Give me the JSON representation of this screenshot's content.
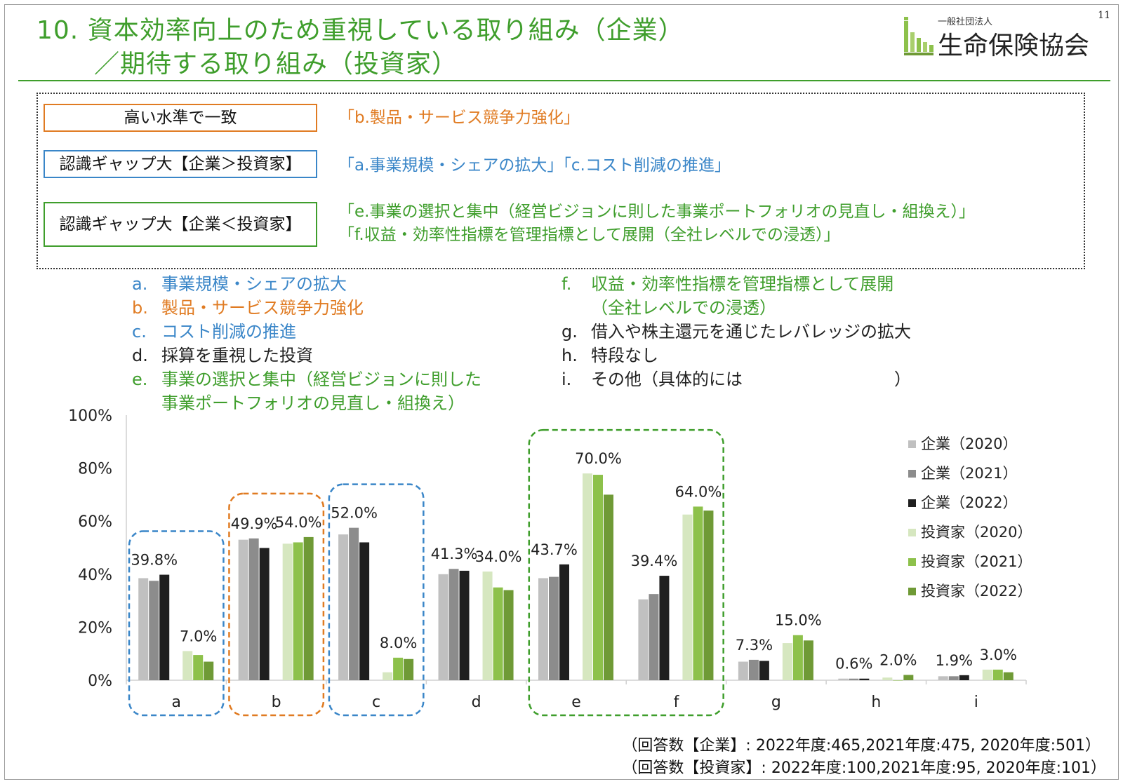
{
  "page_number": "11",
  "title": {
    "line1": "10. 資本効率向上のため重視している取り組み（企業）",
    "line2": "／期待する取り組み（投資家）"
  },
  "logo": {
    "sub": "一般社団法人",
    "main": "生命保険協会"
  },
  "summary": [
    {
      "tag": "高い水準で一致",
      "desc": [
        "「b.製品・サービス競争力強化」"
      ],
      "color": "#e07b22"
    },
    {
      "tag": "認識ギャップ大【企業＞投資家】",
      "desc": [
        "「a.事業規模・シェアの拡大」「c.コスト削減の推進」"
      ],
      "color": "#3a86c8"
    },
    {
      "tag": "認識ギャップ大【企業＜投資家】",
      "desc": [
        "「e.事業の選択と集中（経営ビジョンに則した事業ポートフォリオの見直し・組換え）」",
        "「f.収益・効率性指標を管理指標として展開（全社レベルでの浸透）」"
      ],
      "color": "#3f9e2c"
    }
  ],
  "category_legend": {
    "left": [
      {
        "letter": "a.",
        "text": "事業規模・シェアの拡大",
        "color": "#3a86c8"
      },
      {
        "letter": "b.",
        "text": "製品・サービス競争力強化",
        "color": "#e07b22"
      },
      {
        "letter": "c.",
        "text": "コスト削減の推進",
        "color": "#3a86c8"
      },
      {
        "letter": "d.",
        "text": "採算を重視した投資",
        "color": "#222222"
      },
      {
        "letter": "e.",
        "text": "事業の選択と集中（経営ビジョンに則した",
        "color": "#3f9e2c"
      },
      {
        "letter": "",
        "text": "事業ポートフォリオの見直し・組換え）",
        "color": "#3f9e2c"
      }
    ],
    "right": [
      {
        "letter": "f.",
        "text": "収益・効率性指標を管理指標として展開",
        "color": "#3f9e2c"
      },
      {
        "letter": "",
        "text": "（全社レベルでの浸透）",
        "color": "#3f9e2c"
      },
      {
        "letter": "g.",
        "text": "借入や株主還元を通じたレバレッジの拡大",
        "color": "#222222"
      },
      {
        "letter": "h.",
        "text": "特段なし",
        "color": "#222222"
      },
      {
        "letter": "i.",
        "text": "その他（具体的には　　　　　　　　　）",
        "color": "#222222"
      }
    ]
  },
  "chart_data": {
    "type": "bar",
    "categories": [
      "a",
      "b",
      "c",
      "d",
      "e",
      "f",
      "g",
      "h",
      "i"
    ],
    "ylim": [
      0,
      100
    ],
    "yticks": [
      "0%",
      "20%",
      "40%",
      "60%",
      "80%",
      "100%"
    ],
    "series": [
      {
        "name": "企業（2020）",
        "color": "#c0c0c0",
        "values": [
          38.5,
          53.0,
          55.0,
          40.0,
          38.5,
          30.5,
          7.0,
          0.6,
          1.5
        ]
      },
      {
        "name": "企業（2021）",
        "color": "#8c8c8c",
        "values": [
          37.5,
          53.5,
          57.5,
          42.0,
          39.0,
          32.5,
          7.7,
          0.6,
          1.5
        ]
      },
      {
        "name": "企業（2022）",
        "color": "#1f1f1f",
        "values": [
          39.8,
          49.9,
          52.0,
          41.3,
          43.7,
          39.4,
          7.3,
          0.6,
          1.9
        ]
      },
      {
        "name": "投資家（2020）",
        "color": "#d6e7c0",
        "values": [
          11.0,
          51.5,
          3.0,
          41.0,
          78.0,
          62.5,
          14.0,
          1.0,
          4.0
        ]
      },
      {
        "name": "投資家（2021）",
        "color": "#8dc14b",
        "values": [
          9.5,
          52.0,
          8.5,
          35.0,
          77.5,
          65.5,
          17.0,
          0.0,
          4.0
        ]
      },
      {
        "name": "投資家（2022）",
        "color": "#6f9a36",
        "values": [
          7.0,
          54.0,
          8.0,
          34.0,
          70.0,
          64.0,
          15.0,
          2.0,
          3.0
        ]
      }
    ],
    "data_labels": [
      {
        "cat": 0,
        "series": 2,
        "text": "39.8%"
      },
      {
        "cat": 0,
        "series": 5,
        "text": "7.0%"
      },
      {
        "cat": 1,
        "series": 2,
        "text": "49.9%"
      },
      {
        "cat": 1,
        "series": 5,
        "text": "54.0%"
      },
      {
        "cat": 2,
        "series": 2,
        "text": "52.0%"
      },
      {
        "cat": 2,
        "series": 5,
        "text": "8.0%"
      },
      {
        "cat": 3,
        "series": 2,
        "text": "41.3%"
      },
      {
        "cat": 3,
        "series": 5,
        "text": "34.0%"
      },
      {
        "cat": 4,
        "series": 2,
        "text": "43.7%"
      },
      {
        "cat": 4,
        "series": 5,
        "text": "70.0%"
      },
      {
        "cat": 5,
        "series": 2,
        "text": "39.4%"
      },
      {
        "cat": 5,
        "series": 5,
        "text": "64.0%"
      },
      {
        "cat": 6,
        "series": 2,
        "text": "7.3%"
      },
      {
        "cat": 6,
        "series": 5,
        "text": "15.0%"
      },
      {
        "cat": 7,
        "series": 2,
        "text": "0.6%"
      },
      {
        "cat": 7,
        "series": 5,
        "text": "2.0%"
      },
      {
        "cat": 8,
        "series": 2,
        "text": "1.9%"
      },
      {
        "cat": 8,
        "series": 5,
        "text": "3.0%"
      }
    ],
    "highlights": [
      {
        "categories": [
          "a"
        ],
        "color": "#3a86c8"
      },
      {
        "categories": [
          "b"
        ],
        "color": "#e07b22"
      },
      {
        "categories": [
          "c"
        ],
        "color": "#3a86c8"
      },
      {
        "categories": [
          "e",
          "f"
        ],
        "color": "#3f9e2c"
      }
    ],
    "legend_position": "right",
    "grid": false
  },
  "notes": [
    "（回答数【企業】: 2022年度:465,2021年度:475, 2020年度:501）",
    "（回答数【投資家】: 2022年度:100,2021年度:95, 2020年度:101）"
  ]
}
